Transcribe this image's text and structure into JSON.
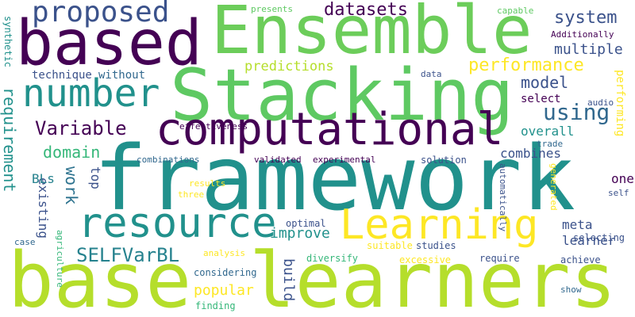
{
  "palette": {
    "dark_purple": "#440154",
    "indigo": "#3b528b",
    "slate_blue": "#31688e",
    "teal": "#21918c",
    "green": "#35b779",
    "light_green": "#5ec962",
    "lime": "#90d743",
    "yellow": "#fde725"
  },
  "words": [
    {
      "id": "w-framework",
      "text": "framework",
      "color": "#21918c",
      "weight": 115
    },
    {
      "id": "w-base",
      "text": "base",
      "color": "#b5de2b",
      "weight": 100
    },
    {
      "id": "w-learners",
      "text": "learners",
      "color": "#b5de2b",
      "weight": 100
    },
    {
      "id": "w-stacking",
      "text": "Stacking",
      "color": "#5ec962",
      "weight": 92
    },
    {
      "id": "w-ensemble",
      "text": "Ensemble",
      "color": "#6ccd5a",
      "weight": 88
    },
    {
      "id": "w-based",
      "text": "based",
      "color": "#440154",
      "weight": 80
    },
    {
      "id": "w-computational",
      "text": "computational",
      "color": "#440154",
      "weight": 58
    },
    {
      "id": "w-resource",
      "text": "resource",
      "color": "#21918c",
      "weight": 54
    },
    {
      "id": "w-learning",
      "text": "Learning",
      "color": "#fde725",
      "weight": 54
    },
    {
      "id": "w-number",
      "text": "number",
      "color": "#21918c",
      "weight": 48
    },
    {
      "id": "w-proposed",
      "text": "proposed",
      "color": "#3b528b",
      "weight": 38
    },
    {
      "id": "w-variable",
      "text": "Variable",
      "color": "#440154",
      "weight": 26
    },
    {
      "id": "w-selfvarbl",
      "text": "SELFVarBL",
      "color": "#26828e",
      "weight": 26
    },
    {
      "id": "w-using",
      "text": "using",
      "color": "#31688e",
      "weight": 26
    },
    {
      "id": "w-datasets",
      "text": "datasets",
      "color": "#440154",
      "weight": 22
    },
    {
      "id": "w-system",
      "text": "system",
      "color": "#3b528b",
      "weight": 22
    },
    {
      "id": "w-performance",
      "text": "performance",
      "color": "#fde725",
      "weight": 22
    },
    {
      "id": "w-domain",
      "text": "domain",
      "color": "#35b779",
      "weight": 20
    },
    {
      "id": "w-model",
      "text": "model",
      "color": "#3b528b",
      "weight": 20
    },
    {
      "id": "w-requirement",
      "text": "requirement",
      "color": "#21918c",
      "weight": 20
    },
    {
      "id": "w-work",
      "text": "work",
      "color": "#2c728e",
      "weight": 18
    },
    {
      "id": "w-popular",
      "text": "popular",
      "color": "#fde725",
      "weight": 17
    },
    {
      "id": "w-improve",
      "text": "improve",
      "color": "#21918c",
      "weight": 17
    },
    {
      "id": "w-build",
      "text": "build",
      "color": "#3b528b",
      "weight": 17
    },
    {
      "id": "w-multiple",
      "text": "multiple",
      "color": "#3b528b",
      "weight": 17
    },
    {
      "id": "w-predictions",
      "text": "predictions",
      "color": "#b5de2b",
      "weight": 16
    },
    {
      "id": "w-existing",
      "text": "existing",
      "color": "#3b528b",
      "weight": 16
    },
    {
      "id": "w-top",
      "text": "top",
      "color": "#3b528b",
      "weight": 16
    },
    {
      "id": "w-overall",
      "text": "overall",
      "color": "#21918c",
      "weight": 16
    },
    {
      "id": "w-combines",
      "text": "combines",
      "color": "#3b528b",
      "weight": 16
    },
    {
      "id": "w-bls",
      "text": "BLs",
      "color": "#26828e",
      "weight": 16
    },
    {
      "id": "w-meta",
      "text": "meta",
      "color": "#3b528b",
      "weight": 16
    },
    {
      "id": "w-learner",
      "text": "learner",
      "color": "#3b528b",
      "weight": 16
    },
    {
      "id": "w-one",
      "text": "one",
      "color": "#440154",
      "weight": 16
    },
    {
      "id": "w-performing",
      "text": "performing",
      "color": "#fde725",
      "weight": 14
    },
    {
      "id": "w-select",
      "text": "select",
      "color": "#440154",
      "weight": 14
    },
    {
      "id": "w-without",
      "text": "without",
      "color": "#31688e",
      "weight": 14
    },
    {
      "id": "w-technique",
      "text": "technique",
      "color": "#3b528b",
      "weight": 12
    },
    {
      "id": "w-synthetic",
      "text": "synthetic",
      "color": "#21918c",
      "weight": 12
    },
    {
      "id": "w-diversify",
      "text": "diversify",
      "color": "#35b779",
      "weight": 12
    },
    {
      "id": "w-finding",
      "text": "finding",
      "color": "#35b779",
      "weight": 12
    },
    {
      "id": "w-considering",
      "text": "considering",
      "color": "#31688e",
      "weight": 12
    },
    {
      "id": "w-selecting",
      "text": "selecting",
      "color": "#3b528b",
      "weight": 12
    },
    {
      "id": "w-studies",
      "text": "studies",
      "color": "#3b528b",
      "weight": 12
    },
    {
      "id": "w-require",
      "text": "require",
      "color": "#3b528b",
      "weight": 12
    },
    {
      "id": "w-optimal",
      "text": "optimal",
      "color": "#3b528b",
      "weight": 12
    },
    {
      "id": "w-solution",
      "text": "solution",
      "color": "#3b528b",
      "weight": 11
    },
    {
      "id": "w-excessive",
      "text": "excessive",
      "color": "#fde725",
      "weight": 11
    },
    {
      "id": "w-suitable",
      "text": "suitable",
      "color": "#fde725",
      "weight": 11
    },
    {
      "id": "w-achieve",
      "text": "achieve",
      "color": "#3b528b",
      "weight": 11
    },
    {
      "id": "w-presents",
      "text": "presents",
      "color": "#5ec962",
      "weight": 11
    },
    {
      "id": "w-capable",
      "text": "capable",
      "color": "#5ec962",
      "weight": 11
    },
    {
      "id": "w-additionally",
      "text": "Additionally",
      "color": "#440154",
      "weight": 10
    },
    {
      "id": "w-data",
      "text": "data",
      "color": "#3b528b",
      "weight": 10
    },
    {
      "id": "w-audio",
      "text": "audio",
      "color": "#3b528b",
      "weight": 10
    },
    {
      "id": "w-effectiveness",
      "text": "effectiveness",
      "color": "#440154",
      "weight": 10
    },
    {
      "id": "w-trade",
      "text": "trade",
      "color": "#31688e",
      "weight": 10
    },
    {
      "id": "w-combinations",
      "text": "combinations",
      "color": "#31688e",
      "weight": 10
    },
    {
      "id": "w-validated",
      "text": "validated",
      "color": "#440154",
      "weight": 10
    },
    {
      "id": "w-experimental",
      "text": "experimental",
      "color": "#440154",
      "weight": 10
    },
    {
      "id": "w-results",
      "text": "results",
      "color": "#fde725",
      "weight": 10
    },
    {
      "id": "w-three",
      "text": "three",
      "color": "#fde725",
      "weight": 10
    },
    {
      "id": "w-generated",
      "text": "generated",
      "color": "#fde725",
      "weight": 10
    },
    {
      "id": "w-automatically",
      "text": "automatically",
      "color": "#3b528b",
      "weight": 10
    },
    {
      "id": "w-self",
      "text": "self",
      "color": "#3b528b",
      "weight": 10
    },
    {
      "id": "w-agriculture",
      "text": "agriculture",
      "color": "#35b779",
      "weight": 10
    },
    {
      "id": "w-case",
      "text": "case",
      "color": "#31688e",
      "weight": 10
    },
    {
      "id": "w-analysis",
      "text": "analysis",
      "color": "#fde725",
      "weight": 10
    },
    {
      "id": "w-show",
      "text": "show",
      "color": "#31688e",
      "weight": 10
    }
  ]
}
